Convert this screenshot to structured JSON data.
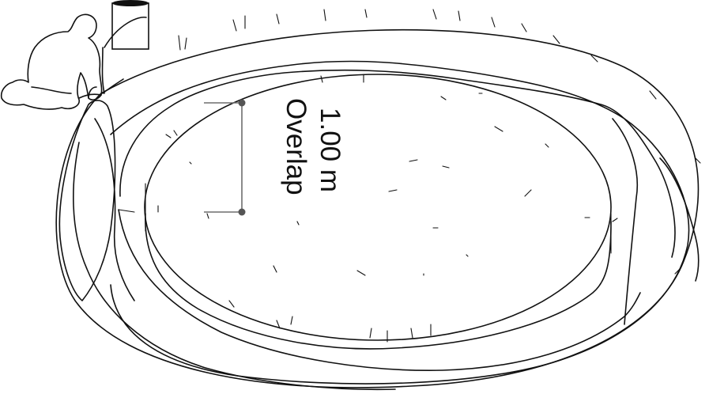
{
  "measurement": {
    "value_label": "1.00 m",
    "caption": "Overlap"
  },
  "icons": {
    "worker": "kneeling-worker-figure",
    "roll": "liner-roll"
  },
  "colors": {
    "ink": "#111111",
    "dimension_line": "#6e6e6e",
    "background": "#ffffff"
  }
}
